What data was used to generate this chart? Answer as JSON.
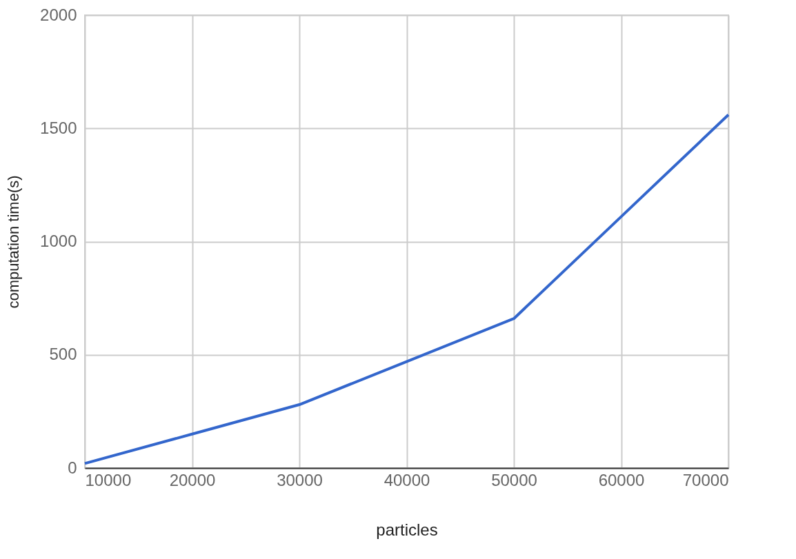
{
  "chart_data": {
    "type": "line",
    "xlabel": "particles",
    "ylabel": "computation time(s)",
    "x": [
      10000,
      20000,
      30000,
      40000,
      50000,
      60000,
      70000
    ],
    "series": [
      {
        "color": "#3366cc",
        "values": [
          20,
          150,
          280,
          470,
          660,
          1110,
          1560
        ]
      }
    ],
    "xlim": [
      10000,
      70000
    ],
    "xticks": [
      10000,
      20000,
      30000,
      40000,
      50000,
      60000,
      70000
    ],
    "ylim": [
      0,
      2000
    ],
    "yticks": [
      0,
      500,
      1000,
      1500,
      2000
    ],
    "grid": true,
    "line_style": "solid"
  }
}
